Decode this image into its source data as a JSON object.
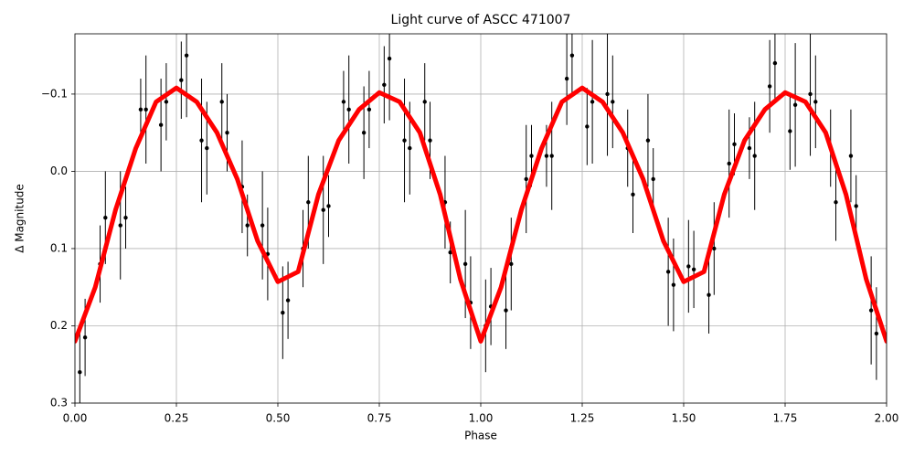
{
  "chart_data": {
    "type": "errorbar",
    "title": "Light curve of ASCC 471007",
    "xlabel": "Phase",
    "ylabel": "Δ Magnitude",
    "xlim": [
      0,
      2
    ],
    "ylim": [
      0.3,
      -0.178
    ],
    "xticks": [
      {
        "value": 0,
        "label": "0.00"
      },
      {
        "value": 0.25,
        "label": "0.25"
      },
      {
        "value": 0.5,
        "label": "0.50"
      },
      {
        "value": 0.75,
        "label": "0.75"
      },
      {
        "value": 1,
        "label": "1.00"
      },
      {
        "value": 1.25,
        "label": "1.25"
      },
      {
        "value": 1.5,
        "label": "1.50"
      },
      {
        "value": 1.75,
        "label": "1.75"
      },
      {
        "value": 2,
        "label": "2.00"
      }
    ],
    "yticks": [
      {
        "value": -0.1,
        "label": "−0.1"
      },
      {
        "value": 0,
        "label": "0.0"
      },
      {
        "value": 0.1,
        "label": "0.1"
      },
      {
        "value": 0.2,
        "label": "0.2"
      },
      {
        "value": 0.3,
        "label": "0.3"
      }
    ],
    "grid": true,
    "series": [
      {
        "type": "errorbar",
        "color": "#000000",
        "x": [
          0.025,
          0.075,
          0.125,
          0.175,
          0.225,
          0.275,
          0.325,
          0.375,
          0.425,
          0.475,
          0.525,
          0.575,
          0.625,
          0.675,
          0.725,
          0.775,
          0.825,
          0.875,
          0.925,
          0.975,
          1.025,
          1.075,
          1.125,
          1.175,
          1.225,
          1.275,
          1.325,
          1.375,
          1.425,
          1.475,
          1.525,
          1.575,
          1.625,
          1.675,
          1.725,
          1.775,
          1.825,
          1.875,
          1.925,
          1.975
        ],
        "values": [
          0.215,
          0.06,
          0.06,
          -0.08,
          -0.09,
          -0.15,
          -0.03,
          -0.05,
          0.07,
          0.107,
          0.167,
          0.04,
          0.045,
          -0.08,
          -0.08,
          -0.146,
          -0.03,
          -0.04,
          0.105,
          0.17,
          0.175,
          0.12,
          -0.02,
          -0.02,
          -0.15,
          -0.09,
          -0.09,
          0.03,
          0.01,
          0.147,
          0.127,
          0.1,
          -0.035,
          -0.02,
          -0.14,
          -0.086,
          -0.09,
          0.04,
          0.045,
          0.21
        ],
        "errors": [
          0.05,
          0.06,
          0.04,
          0.07,
          0.05,
          0.08,
          0.06,
          0.05,
          0.04,
          0.06,
          0.05,
          0.06,
          0.04,
          0.07,
          0.05,
          0.08,
          0.06,
          0.05,
          0.04,
          0.06,
          0.05,
          0.06,
          0.04,
          0.07,
          0.05,
          0.08,
          0.06,
          0.05,
          0.04,
          0.06,
          0.05,
          0.06,
          0.04,
          0.07,
          0.05,
          0.08,
          0.06,
          0.05,
          0.04,
          0.06
        ]
      },
      {
        "type": "errorbar",
        "color": "#000000",
        "x": [
          0.012,
          0.062,
          0.112,
          0.162,
          0.212,
          0.262,
          0.312,
          0.362,
          0.412,
          0.462,
          0.512,
          0.562,
          0.612,
          0.662,
          0.712,
          0.762,
          0.812,
          0.862,
          0.912,
          0.962,
          1.012,
          1.062,
          1.112,
          1.162,
          1.212,
          1.262,
          1.312,
          1.362,
          1.412,
          1.462,
          1.512,
          1.562,
          1.612,
          1.662,
          1.712,
          1.762,
          1.812,
          1.862,
          1.912,
          1.962
        ],
        "values": [
          0.26,
          0.12,
          0.07,
          -0.08,
          -0.06,
          -0.118,
          -0.04,
          -0.09,
          0.02,
          0.07,
          0.183,
          0.1,
          0.05,
          -0.09,
          -0.05,
          -0.112,
          -0.04,
          -0.09,
          0.04,
          0.12,
          0.2,
          0.18,
          0.01,
          -0.02,
          -0.12,
          -0.058,
          -0.1,
          -0.03,
          -0.04,
          0.13,
          0.123,
          0.16,
          -0.01,
          -0.03,
          -0.11,
          -0.052,
          -0.1,
          -0.03,
          -0.02,
          0.18
        ],
        "errors": [
          0.06,
          0.05,
          0.07,
          0.04,
          0.06,
          0.05,
          0.08,
          0.05,
          0.06,
          0.07,
          0.06,
          0.05,
          0.07,
          0.04,
          0.06,
          0.05,
          0.08,
          0.05,
          0.06,
          0.07,
          0.06,
          0.05,
          0.07,
          0.04,
          0.06,
          0.05,
          0.08,
          0.05,
          0.06,
          0.07,
          0.06,
          0.05,
          0.07,
          0.04,
          0.06,
          0.05,
          0.08,
          0.05,
          0.06,
          0.07
        ]
      },
      {
        "type": "line",
        "color": "#ff0000",
        "x": [
          0,
          0.05,
          0.1,
          0.15,
          0.2,
          0.25,
          0.3,
          0.35,
          0.4,
          0.45,
          0.5,
          0.55,
          0.6,
          0.65,
          0.7,
          0.75,
          0.8,
          0.85,
          0.9,
          0.95,
          1,
          1.05,
          1.1,
          1.15,
          1.2,
          1.25,
          1.3,
          1.35,
          1.4,
          1.45,
          1.5,
          1.55,
          1.6,
          1.65,
          1.7,
          1.75,
          1.8,
          1.85,
          1.9,
          1.95,
          2
        ],
        "values": [
          0.22,
          0.15,
          0.05,
          -0.03,
          -0.09,
          -0.108,
          -0.09,
          -0.05,
          0.01,
          0.09,
          0.143,
          0.13,
          0.03,
          -0.04,
          -0.08,
          -0.102,
          -0.09,
          -0.05,
          0.03,
          0.14,
          0.22,
          0.15,
          0.05,
          -0.03,
          -0.09,
          -0.108,
          -0.09,
          -0.05,
          0.01,
          0.09,
          0.143,
          0.13,
          0.03,
          -0.04,
          -0.08,
          -0.102,
          -0.09,
          -0.05,
          0.03,
          0.14,
          0.22
        ]
      }
    ]
  }
}
